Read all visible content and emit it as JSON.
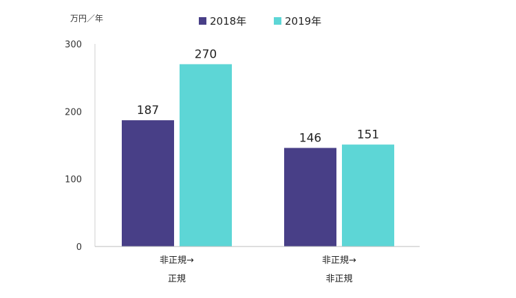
{
  "chart_data": {
    "type": "bar",
    "title": "",
    "ylabel": "万円／年",
    "xlabel": "",
    "ylim": [
      0,
      300
    ],
    "yticks": [
      0,
      100,
      200,
      300
    ],
    "grid": false,
    "legend_position": "top-center",
    "categories": [
      {
        "line1": "非正規→",
        "line2": "正規"
      },
      {
        "line1": "非正規→",
        "line2": "非正規"
      }
    ],
    "series": [
      {
        "name": "2018年",
        "color": "#483f87",
        "values": [
          187,
          146
        ]
      },
      {
        "name": "2019年",
        "color": "#5dd6d6",
        "values": [
          270,
          151
        ]
      }
    ]
  }
}
